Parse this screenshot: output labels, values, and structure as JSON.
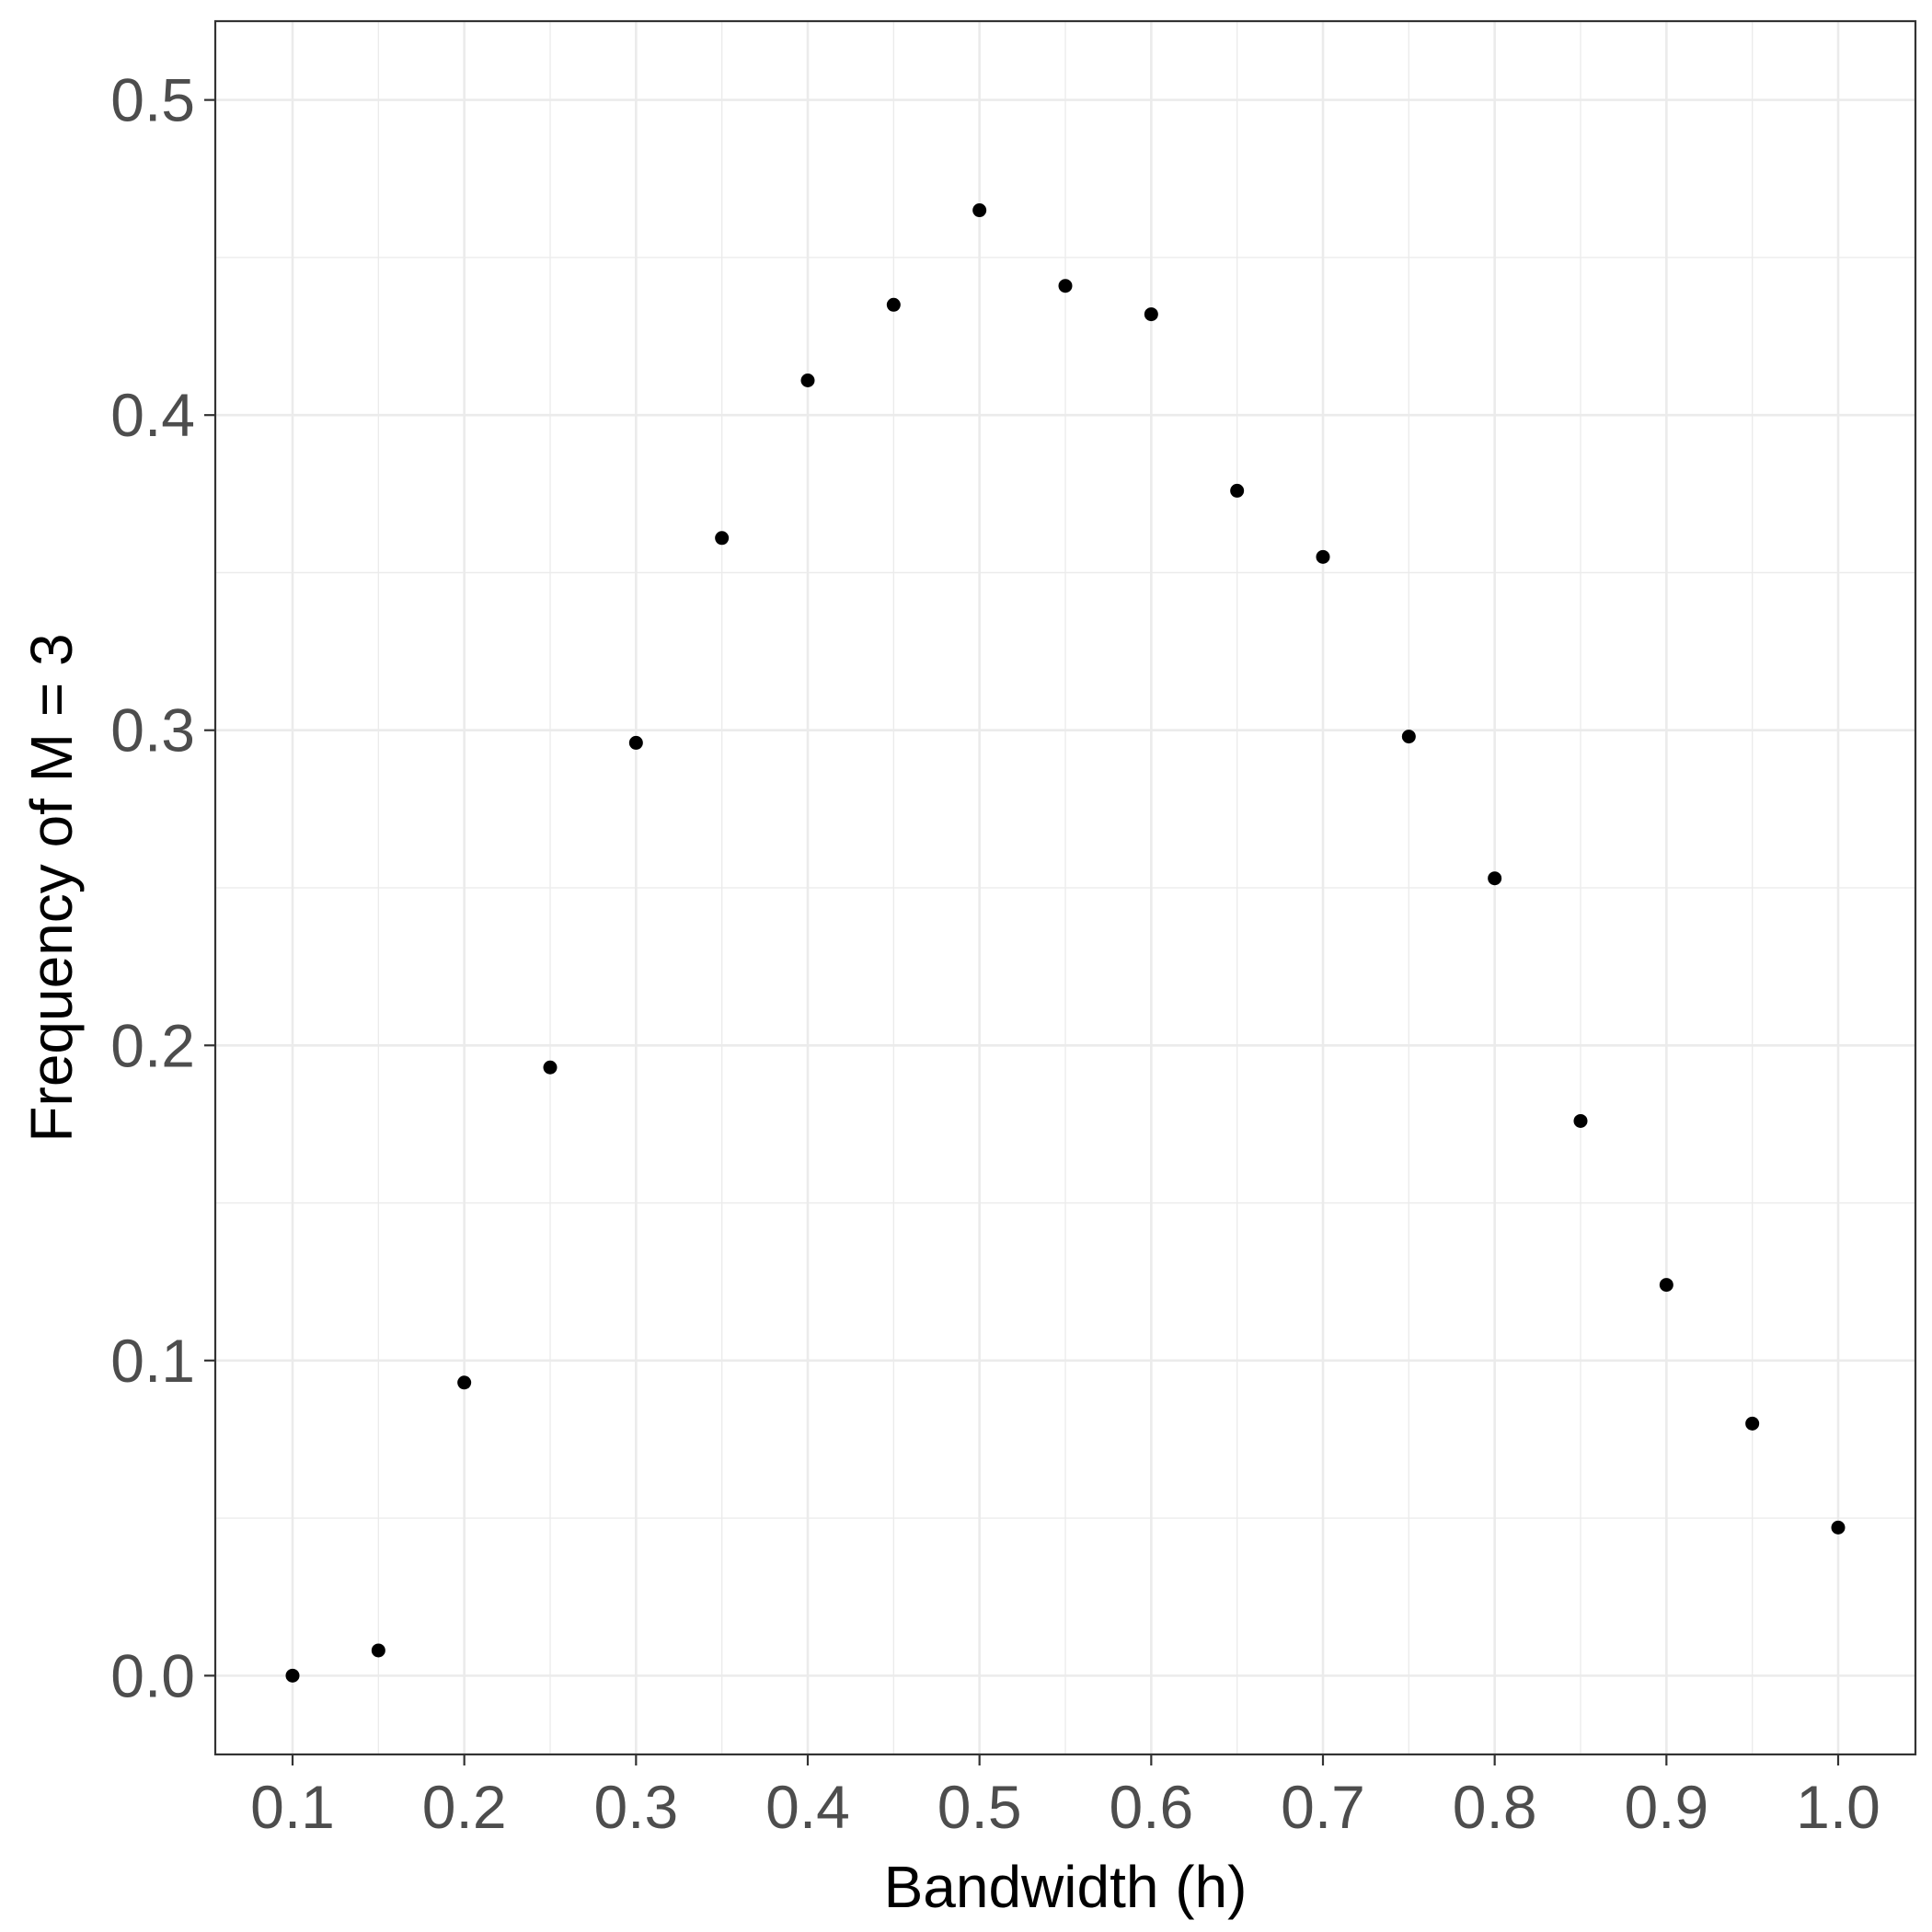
{
  "chart_data": {
    "type": "scatter",
    "title": "",
    "xlabel": "Bandwidth (h)",
    "ylabel": "Frequency of M = 3",
    "xlim": [
      0.055,
      1.045
    ],
    "ylim": [
      -0.025,
      0.525
    ],
    "x_ticks": [
      0.1,
      0.2,
      0.3,
      0.4,
      0.5,
      0.6,
      0.7,
      0.8,
      0.9,
      1.0
    ],
    "x_tick_labels": [
      "0.1",
      "0.2",
      "0.3",
      "0.4",
      "0.5",
      "0.6",
      "0.7",
      "0.8",
      "0.9",
      "1.0"
    ],
    "y_ticks": [
      0.0,
      0.1,
      0.2,
      0.3,
      0.4,
      0.5
    ],
    "y_tick_labels": [
      "0.0",
      "0.1",
      "0.2",
      "0.3",
      "0.4",
      "0.5"
    ],
    "x_minor_gridlines": [
      0.15,
      0.25,
      0.35,
      0.45,
      0.55,
      0.65,
      0.75,
      0.85,
      0.95
    ],
    "y_minor_gridlines": [
      0.05,
      0.15,
      0.25,
      0.35,
      0.45
    ],
    "grid": true,
    "legend": "none",
    "point_color": "#000000",
    "grid_color": "#ebebeb",
    "panel_border_color": "#333333",
    "series": [
      {
        "x": [
          0.1,
          0.15,
          0.2,
          0.25,
          0.3,
          0.35,
          0.4,
          0.45,
          0.5,
          0.55,
          0.6,
          0.65,
          0.7,
          0.75,
          0.8,
          0.85,
          0.9,
          0.95,
          1.0
        ],
        "y": [
          0.0,
          0.008,
          0.093,
          0.193,
          0.296,
          0.361,
          0.411,
          0.435,
          0.465,
          0.441,
          0.432,
          0.376,
          0.355,
          0.298,
          0.253,
          0.176,
          0.124,
          0.08,
          0.047
        ]
      }
    ]
  }
}
